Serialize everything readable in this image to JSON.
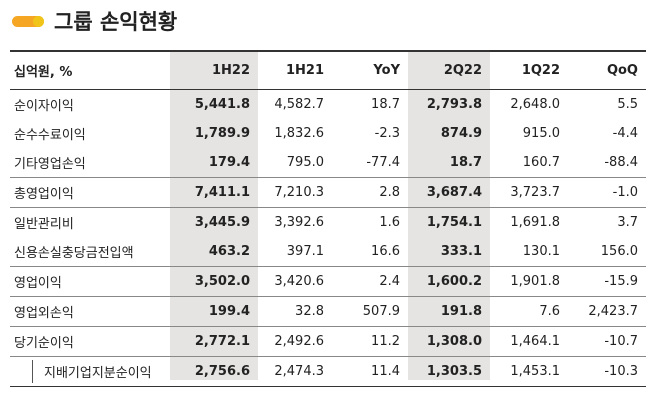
{
  "title": "그룹 손익현황",
  "table": {
    "header": [
      "십억원, %",
      "1H22",
      "1H21",
      "YoY",
      "2Q22",
      "1Q22",
      "QoQ"
    ],
    "rows": [
      [
        "순이자이익",
        "5,441.8",
        "4,582.7",
        "18.7",
        "2,793.8",
        "2,648.0",
        "5.5"
      ],
      [
        "순수수료이익",
        "1,789.9",
        "1,832.6",
        "-2.3",
        "874.9",
        "915.0",
        "-4.4"
      ],
      [
        "기타영업손익",
        "179.4",
        "795.0",
        "-77.4",
        "18.7",
        "160.7",
        "-88.4"
      ],
      [
        "총영업이익",
        "7,411.1",
        "7,210.3",
        "2.8",
        "3,687.4",
        "3,723.7",
        "-1.0"
      ],
      [
        "일반관리비",
        "3,445.9",
        "3,392.6",
        "1.6",
        "1,754.1",
        "1,691.8",
        "3.7"
      ],
      [
        "신용손실충당금전입액",
        "463.2",
        "397.1",
        "16.6",
        "333.1",
        "130.1",
        "156.0"
      ],
      [
        "영업이익",
        "3,502.0",
        "3,420.6",
        "2.4",
        "1,600.2",
        "1,901.8",
        "-15.9"
      ],
      [
        "영업외손익",
        "199.4",
        "32.8",
        "507.9",
        "191.8",
        "7.6",
        "2,423.7"
      ],
      [
        "당기순이익",
        "2,772.1",
        "2,492.6",
        "11.2",
        "1,308.0",
        "1,464.1",
        "-10.7"
      ],
      [
        "지배기업지분순이익",
        "2,756.6",
        "2,474.3",
        "11.4",
        "1,303.5",
        "1,453.1",
        "-10.3"
      ]
    ]
  }
}
